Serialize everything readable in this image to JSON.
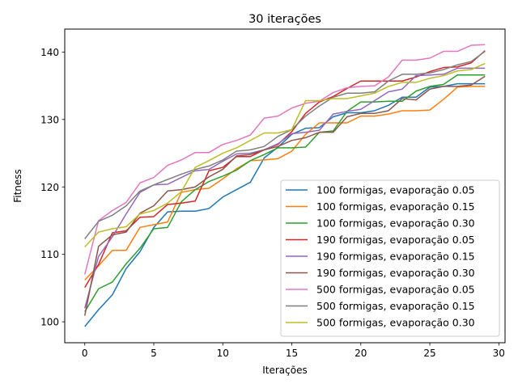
{
  "chart_data": {
    "type": "line",
    "title": "30 iterações",
    "xlabel": "Iterações",
    "ylabel": "Fitness",
    "xlim": [
      -1.45,
      30.45
    ],
    "ylim": [
      96.9,
      143.4
    ],
    "x_ticks": [
      0,
      5,
      10,
      15,
      20,
      25,
      30
    ],
    "y_ticks": [
      100,
      110,
      120,
      130,
      140
    ],
    "grid": false,
    "legend_position": "lower-right",
    "x": [
      0,
      1,
      2,
      3,
      4,
      5,
      6,
      7,
      8,
      9,
      10,
      11,
      12,
      13,
      14,
      15,
      16,
      17,
      18,
      19,
      20,
      21,
      22,
      23,
      24,
      25,
      26,
      27,
      28,
      29
    ],
    "series": [
      {
        "name": "100 formigas, evaporação 0.05",
        "color": "#1f77b4",
        "values": [
          99.3,
          101.8,
          104.0,
          107.9,
          110.4,
          114.0,
          116.3,
          116.4,
          116.4,
          116.8,
          118.5,
          119.6,
          120.7,
          124.3,
          125.9,
          127.8,
          128.7,
          128.8,
          130.4,
          131.0,
          131.0,
          131.3,
          132.1,
          133.3,
          133.3,
          134.8,
          134.9,
          135.3,
          135.3,
          135.3
        ]
      },
      {
        "name": "100 formigas, evaporação 0.15",
        "color": "#ff7f0e",
        "values": [
          106.2,
          108.3,
          110.6,
          110.6,
          114.0,
          114.4,
          114.8,
          119.2,
          119.6,
          119.8,
          121.2,
          122.7,
          123.9,
          124.0,
          124.2,
          125.3,
          127.8,
          129.5,
          129.5,
          129.5,
          130.5,
          130.5,
          130.8,
          131.3,
          131.3,
          131.4,
          133.0,
          134.8,
          134.9,
          134.9
        ]
      },
      {
        "name": "100 formigas, evaporação 0.30",
        "color": "#2ca02c",
        "values": [
          101.5,
          104.9,
          105.9,
          108.6,
          110.9,
          113.8,
          114.0,
          117.8,
          119.6,
          120.8,
          121.6,
          122.5,
          123.9,
          124.8,
          125.8,
          125.8,
          125.9,
          128.1,
          128.3,
          131.2,
          132.6,
          132.6,
          132.7,
          132.7,
          134.2,
          134.9,
          135.2,
          136.6,
          136.6,
          136.6
        ]
      },
      {
        "name": "190 formigas, evaporação 0.05",
        "color": "#d62728",
        "values": [
          105.1,
          108.5,
          113.2,
          113.5,
          115.5,
          115.6,
          117.4,
          117.6,
          117.9,
          122.4,
          122.9,
          124.5,
          124.5,
          125.5,
          126.3,
          128.2,
          130.9,
          132.6,
          133.4,
          134.6,
          135.7,
          135.7,
          135.7,
          135.7,
          136.3,
          137.1,
          137.7,
          137.8,
          138.4,
          140.2
        ]
      },
      {
        "name": "190 formigas, evaporação 0.15",
        "color": "#9467bd",
        "values": [
          102.0,
          109.7,
          112.6,
          116.0,
          119.2,
          120.3,
          120.4,
          121.4,
          122.4,
          122.6,
          123.8,
          124.9,
          125.0,
          125.5,
          126.4,
          127.9,
          128.1,
          128.4,
          130.8,
          131.2,
          131.5,
          132.8,
          134.1,
          134.5,
          136.5,
          136.6,
          136.7,
          137.6,
          137.6,
          137.6
        ]
      },
      {
        "name": "190 formigas, evaporação 0.30",
        "color": "#8c564b",
        "values": [
          100.9,
          111.2,
          112.9,
          113.3,
          116.1,
          117.2,
          119.4,
          119.6,
          120.0,
          121.5,
          122.6,
          124.6,
          124.8,
          125.5,
          126.0,
          126.9,
          127.3,
          128.1,
          128.1,
          130.4,
          130.9,
          130.9,
          131.3,
          133.1,
          132.9,
          134.5,
          134.9,
          134.9,
          135.1,
          136.4
        ]
      },
      {
        "name": "500 formigas, evaporação 0.05",
        "color": "#e377c2",
        "values": [
          107.0,
          115.0,
          116.5,
          117.7,
          120.6,
          121.4,
          123.2,
          124.0,
          125.1,
          125.1,
          126.3,
          126.9,
          127.7,
          130.2,
          130.5,
          131.7,
          132.4,
          132.7,
          134.0,
          134.7,
          134.9,
          135.0,
          136.3,
          138.8,
          138.8,
          139.1,
          140.1,
          140.1,
          141.0,
          141.1
        ]
      },
      {
        "name": "500 formigas, evaporação 0.15",
        "color": "#7f7f7f",
        "values": [
          112.3,
          114.9,
          115.8,
          117.2,
          119.4,
          120.3,
          121.1,
          121.9,
          122.6,
          123.1,
          124.0,
          125.3,
          125.5,
          126.0,
          127.5,
          128.5,
          130.5,
          132.0,
          133.3,
          133.9,
          133.9,
          134.1,
          135.7,
          136.7,
          136.7,
          136.9,
          137.4,
          138.1,
          138.6,
          140.1
        ]
      },
      {
        "name": "500 formigas, evaporação 0.30",
        "color": "#bcbd22",
        "values": [
          111.1,
          113.3,
          113.8,
          114.1,
          116.0,
          116.5,
          117.6,
          119.3,
          122.9,
          123.9,
          125.0,
          125.8,
          126.9,
          128.0,
          128.0,
          128.5,
          132.8,
          132.8,
          133.1,
          133.1,
          133.5,
          133.9,
          134.9,
          135.5,
          135.5,
          136.1,
          136.5,
          137.2,
          137.4,
          138.3
        ]
      }
    ]
  }
}
